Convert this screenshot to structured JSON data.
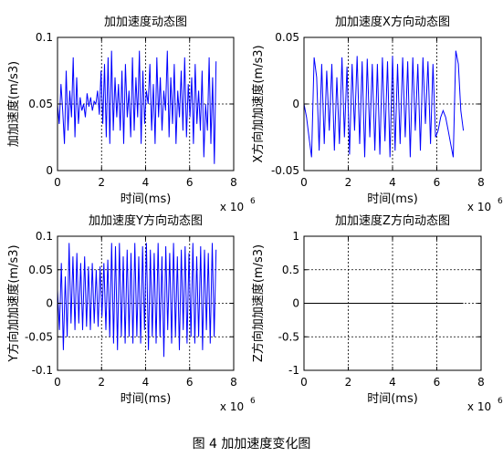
{
  "caption": "图 4  加加速度变化图",
  "chart_data": [
    {
      "type": "line",
      "title": "加加速度动态图",
      "xlabel": "时间(ms)",
      "ylabel": "加加速度(m/s3)",
      "x_exponent": "x 10",
      "x_exponent_power": "6",
      "xlim": [
        0,
        8
      ],
      "ylim": [
        0,
        0.1
      ],
      "xticks": [
        0,
        2,
        4,
        6,
        8
      ],
      "xtick_labels": [
        "0",
        "2",
        "4",
        "6",
        "8"
      ],
      "yticks": [
        0,
        0.05,
        0.1
      ],
      "ytick_labels": [
        "0",
        "0.05",
        "0.1"
      ],
      "grid": true,
      "grid_style": "dotted",
      "series_color": "#0000ff",
      "series": [
        {
          "x_range": [
            0,
            7.2
          ],
          "y": [
            0.05,
            0.035,
            0.065,
            0.045,
            0.02,
            0.075,
            0.03,
            0.06,
            0.04,
            0.085,
            0.025,
            0.07,
            0.035,
            0.055,
            0.045,
            0.05,
            0.04,
            0.058,
            0.048,
            0.055,
            0.045,
            0.052,
            0.05,
            0.06,
            0.042,
            0.075,
            0.035,
            0.08,
            0.025,
            0.085,
            0.02,
            0.09,
            0.03,
            0.07,
            0.04,
            0.065,
            0.03,
            0.075,
            0.02,
            0.08,
            0.04,
            0.06,
            0.025,
            0.085,
            0.03,
            0.07,
            0.04,
            0.09,
            0.02,
            0.075,
            0.035,
            0.06,
            0.05,
            0.08,
            0.03,
            0.065,
            0.02,
            0.085,
            0.04,
            0.07,
            0.03,
            0.06,
            0.045,
            0.09,
            0.025,
            0.07,
            0.035,
            0.08,
            0.02,
            0.06,
            0.04,
            0.075,
            0.03,
            0.085,
            0.025,
            0.065,
            0.04,
            0.07,
            0.02,
            0.08,
            0.035,
            0.06,
            0.03,
            0.075,
            0.01,
            0.05,
            0.03,
            0.085,
            0.02,
            0.07,
            0.005,
            0.082
          ]
        }
      ]
    },
    {
      "type": "line",
      "title": "加加速度X方向动态图",
      "xlabel": "时间(ms)",
      "ylabel": "X方向加加速度(m/s3)",
      "x_exponent": "x 10",
      "x_exponent_power": "6",
      "xlim": [
        0,
        8
      ],
      "ylim": [
        -0.05,
        0.05
      ],
      "xticks": [
        0,
        2,
        4,
        6,
        8
      ],
      "xtick_labels": [
        "0",
        "2",
        "4",
        "6",
        "8"
      ],
      "yticks": [
        -0.05,
        0,
        0.05
      ],
      "ytick_labels": [
        "-0.05",
        "0",
        "0.05"
      ],
      "grid": true,
      "grid_style": "dotted",
      "series_color": "#0000ff",
      "series": [
        {
          "x_range": [
            0,
            7.2
          ],
          "y": [
            0,
            -0.01,
            -0.025,
            -0.04,
            0.035,
            0.02,
            -0.035,
            0.03,
            -0.03,
            0.025,
            -0.02,
            0.03,
            -0.035,
            0.02,
            -0.03,
            0.035,
            -0.025,
            0.028,
            -0.038,
            0.03,
            -0.02,
            0.036,
            -0.03,
            0.032,
            -0.04,
            0.034,
            -0.025,
            0.03,
            -0.035,
            0.03,
            -0.038,
            0.035,
            -0.028,
            0.032,
            -0.04,
            0.036,
            -0.035,
            0.03,
            -0.03,
            0.035,
            -0.025,
            0.032,
            -0.04,
            0.035,
            -0.02,
            0.03,
            -0.035,
            0.035,
            -0.015,
            0.032,
            -0.03,
            0.03,
            -0.025,
            -0.02,
            -0.01,
            -0.005,
            -0.01,
            -0.02,
            -0.03,
            -0.04,
            0.04,
            0.03,
            -0.005,
            -0.02
          ]
        }
      ]
    },
    {
      "type": "line",
      "title": "加加速度Y方向动态图",
      "xlabel": "时间(ms)",
      "ylabel": "Y方向加加速度(m/s3)",
      "x_exponent": "x 10",
      "x_exponent_power": "6",
      "xlim": [
        0,
        8
      ],
      "ylim": [
        -0.1,
        0.1
      ],
      "xticks": [
        0,
        2,
        4,
        6,
        8
      ],
      "xtick_labels": [
        "0",
        "2",
        "4",
        "6",
        "8"
      ],
      "yticks": [
        -0.1,
        -0.05,
        0,
        0.05,
        0.1
      ],
      "ytick_labels": [
        "-0.1",
        "-0.05",
        "0",
        "0.05",
        "0.1"
      ],
      "grid": true,
      "grid_style": "dotted",
      "series_color": "#0000ff",
      "series": [
        {
          "x_range": [
            0,
            7.2
          ],
          "y": [
            0.02,
            -0.04,
            0.06,
            -0.07,
            0.04,
            -0.05,
            0.09,
            -0.03,
            0.07,
            -0.04,
            0.075,
            -0.03,
            0.06,
            -0.04,
            0.07,
            -0.035,
            0.055,
            -0.04,
            0.06,
            -0.03,
            0.05,
            -0.035,
            0.055,
            -0.02,
            0.06,
            -0.04,
            0.065,
            -0.05,
            0.09,
            -0.06,
            0.085,
            -0.07,
            0.09,
            -0.05,
            0.07,
            -0.06,
            0.08,
            -0.05,
            0.075,
            -0.06,
            0.09,
            -0.05,
            0.07,
            -0.06,
            0.085,
            -0.04,
            0.09,
            -0.07,
            0.08,
            -0.05,
            0.075,
            -0.06,
            0.09,
            -0.05,
            0.07,
            -0.08,
            0.085,
            -0.04,
            0.075,
            -0.06,
            0.09,
            -0.05,
            0.07,
            -0.07,
            0.08,
            -0.04,
            0.085,
            -0.06,
            0.075,
            -0.05,
            0.09,
            -0.06,
            0.07,
            -0.05,
            0.085,
            -0.07,
            0.08,
            -0.04,
            0.075,
            -0.06,
            0.09,
            -0.05,
            0.08
          ]
        }
      ]
    },
    {
      "type": "line",
      "title": "加加速度Z方向动态图",
      "xlabel": "时间(ms)",
      "ylabel": "Z方向加加速度(m/s3)",
      "x_exponent": "x 10",
      "x_exponent_power": "6",
      "xlim": [
        0,
        8
      ],
      "ylim": [
        -1,
        1
      ],
      "xticks": [
        0,
        2,
        4,
        6,
        8
      ],
      "xtick_labels": [
        "0",
        "2",
        "4",
        "6",
        "8"
      ],
      "yticks": [
        -1,
        -0.5,
        0,
        0.5,
        1
      ],
      "ytick_labels": [
        "-1",
        "-0.5",
        "0",
        "0.5",
        "1"
      ],
      "grid": true,
      "grid_style": "dotted",
      "series_color": "#000000",
      "series": [
        {
          "x_range": [
            0,
            7.2
          ],
          "y": [
            0,
            0
          ]
        }
      ]
    }
  ]
}
